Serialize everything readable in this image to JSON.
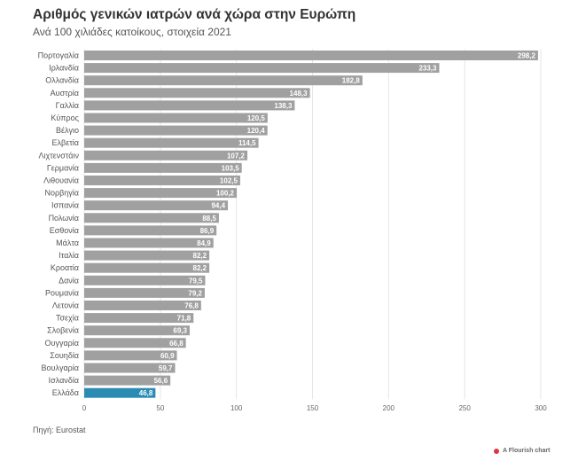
{
  "title": "Αριθμός γενικών ιατρών ανά χώρα στην Ευρώπη",
  "subtitle": "Ανά 100 χιλιάδες κατοίκους, στοιχεία 2021",
  "source": "Πηγή: Eurostat",
  "credit": "A Flourish chart",
  "colors": {
    "bar": "#a0a0a0",
    "highlight": "#2b8cb3",
    "grid": "#e6e6e6",
    "credit_dot": "#e0353f"
  },
  "chart_data": {
    "type": "bar",
    "orientation": "horizontal",
    "categories": [
      "Πορτογαλία",
      "Ιρλανδία",
      "Ολλανδία",
      "Αυστρία",
      "Γαλλία",
      "Κύπρος",
      "Βέλγιο",
      "Ελβετία",
      "Λιχτενστάιν",
      "Γερμανία",
      "Λιθουανία",
      "Νορβηγία",
      "Ισπανία",
      "Πολωνία",
      "Εσθονία",
      "Μάλτα",
      "Ιταλία",
      "Κροατία",
      "Δανία",
      "Ρουμανία",
      "Λετονία",
      "Τσεχία",
      "Σλοβενία",
      "Ουγγαρία",
      "Σουηδία",
      "Βουλγαρία",
      "Ισλανδία",
      "Ελλάδα"
    ],
    "values": [
      298.2,
      233.3,
      182.8,
      148.3,
      138.3,
      120.5,
      120.4,
      114.5,
      107.2,
      103.5,
      102.5,
      100.2,
      94.4,
      88.5,
      86.9,
      84.9,
      82.2,
      82.2,
      79.5,
      79.2,
      76.8,
      71.8,
      69.3,
      66.8,
      60.9,
      59.7,
      56.6,
      46.8
    ],
    "value_labels": [
      "298,2",
      "233,3",
      "182,8",
      "148,3",
      "138,3",
      "120,5",
      "120,4",
      "114,5",
      "107,2",
      "103,5",
      "102,5",
      "100,2",
      "94,4",
      "88,5",
      "86,9",
      "84,9",
      "82,2",
      "82,2",
      "79,5",
      "79,2",
      "76,8",
      "71,8",
      "69,3",
      "66,8",
      "60,9",
      "59,7",
      "56,6",
      "46,8"
    ],
    "highlighted": [
      "Ελλάδα"
    ],
    "xlim": [
      0,
      300
    ],
    "xticks": [
      0,
      50,
      100,
      150,
      200,
      250,
      300
    ],
    "grid": true,
    "title": "Αριθμός γενικών ιατρών ανά χώρα στην Ευρώπη",
    "subtitle": "Ανά 100 χιλιάδες κατοίκους, στοιχεία 2021",
    "xlabel": "",
    "ylabel": ""
  }
}
